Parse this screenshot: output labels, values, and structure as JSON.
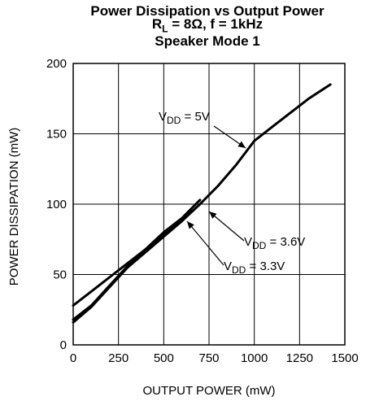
{
  "chart_data": {
    "type": "line",
    "title": "Power Dissipation vs Output Power",
    "subtitle_rl_main": "R",
    "subtitle_rl_sub": "L",
    "subtitle_rest": " = 8Ω, f = 1kHz",
    "subtitle2": "Speaker Mode 1",
    "xlabel": "OUTPUT POWER (mW)",
    "ylabel": "POWER DISSIPATION (mW)",
    "xlim": [
      0,
      1500
    ],
    "ylim": [
      0,
      200
    ],
    "xticks": [
      0,
      250,
      500,
      750,
      1000,
      1250,
      1500
    ],
    "yticks": [
      0,
      50,
      100,
      150,
      200
    ],
    "grid": true,
    "legend": "none",
    "series": [
      {
        "label_main": "V",
        "label_sub": "DD",
        "label_value": " = 5V",
        "x": [
          0,
          100,
          200,
          300,
          400,
          500,
          600,
          700,
          800,
          900,
          1000,
          1100,
          1200,
          1300,
          1420
        ],
        "y": [
          28,
          38,
          48,
          58,
          68,
          78,
          88,
          100,
          113,
          128,
          145,
          155,
          165,
          175,
          185
        ]
      },
      {
        "label_main": "V",
        "label_sub": "DD",
        "label_value": " = 3.6V",
        "x": [
          0,
          100,
          200,
          300,
          400,
          500,
          600,
          700
        ],
        "y": [
          18,
          28,
          42,
          56,
          68,
          80,
          90,
          103
        ]
      },
      {
        "label_main": "V",
        "label_sub": "DD",
        "label_value": " = 3.3V",
        "x": [
          0,
          100,
          200,
          300,
          400,
          500,
          600,
          650
        ],
        "y": [
          16,
          27,
          41,
          55,
          66,
          77,
          88,
          95
        ]
      }
    ]
  }
}
